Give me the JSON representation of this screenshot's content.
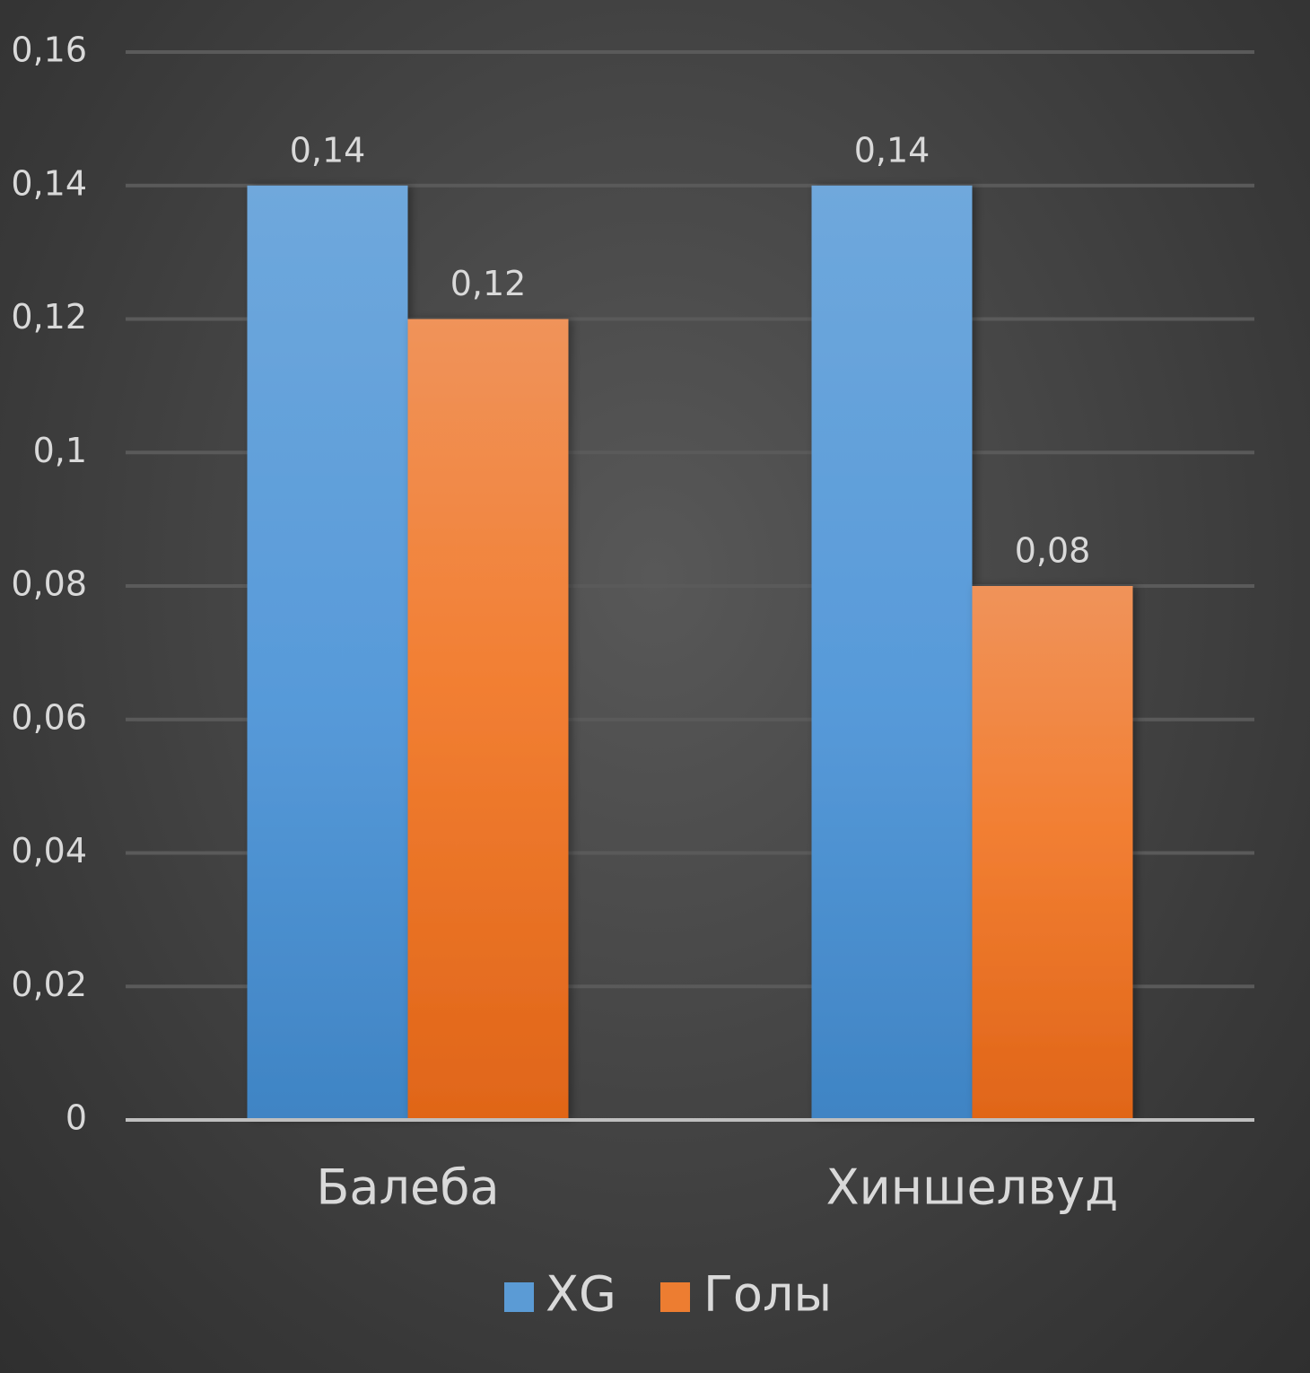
{
  "chart_data": {
    "type": "bar",
    "categories": [
      "Балеба",
      "Хиншелвуд"
    ],
    "series": [
      {
        "name": "XG",
        "values": [
          0.14,
          0.14
        ],
        "labels": [
          "0,14",
          "0,14"
        ],
        "color": "#5b9bd5"
      },
      {
        "name": "Голы",
        "values": [
          0.12,
          0.08
        ],
        "labels": [
          "0,12",
          "0,08"
        ],
        "color": "#ed7d31"
      }
    ],
    "ylim": [
      0,
      0.16
    ],
    "yticks": [
      0,
      0.02,
      0.04,
      0.06,
      0.08,
      0.1,
      0.12,
      0.14,
      0.16
    ],
    "ytick_labels": [
      "0",
      "0,02",
      "0,04",
      "0,06",
      "0,08",
      "0,1",
      "0,12",
      "0,14",
      "0,16"
    ],
    "grid": true,
    "legend": "bottom",
    "title": "",
    "xlabel": "",
    "ylabel": ""
  }
}
